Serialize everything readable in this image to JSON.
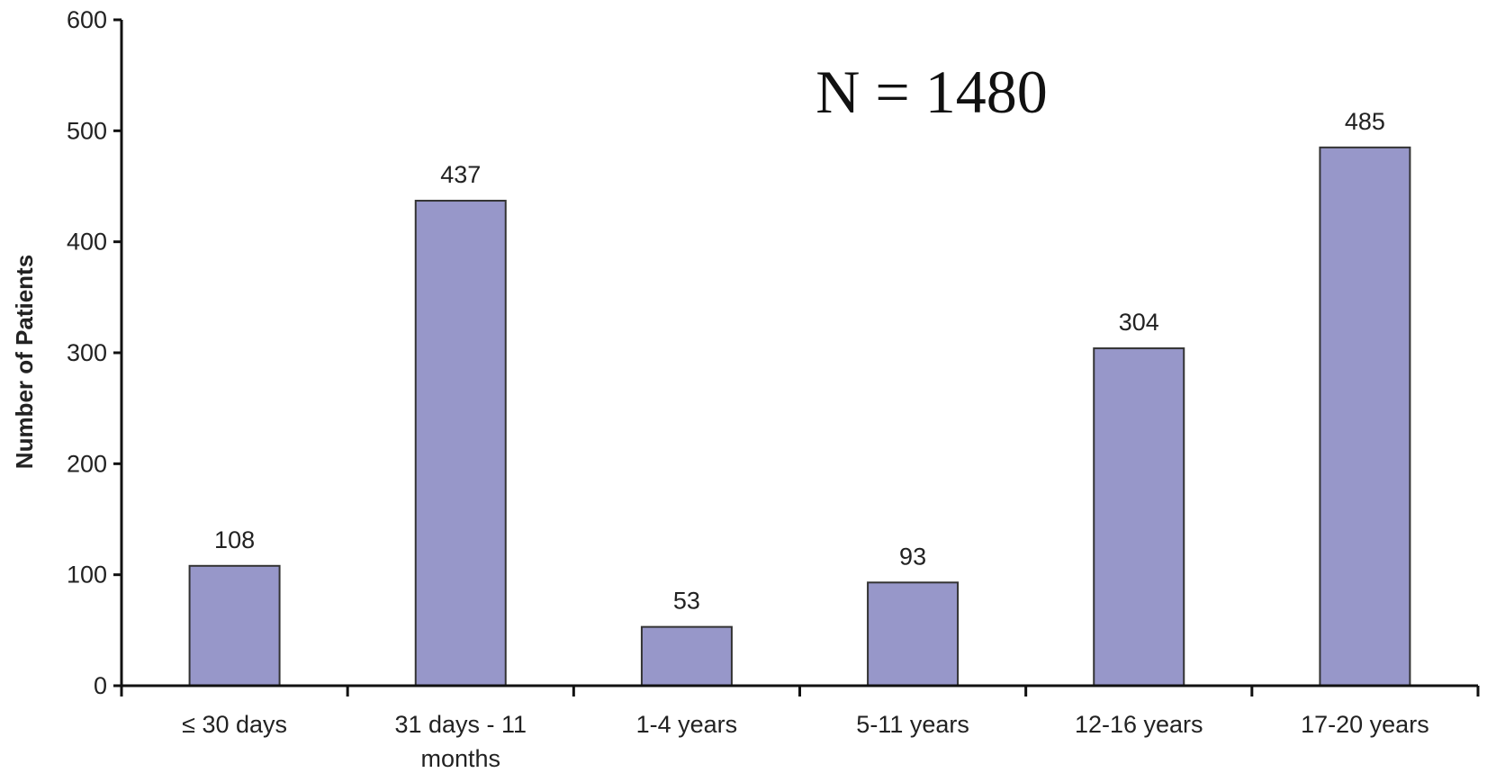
{
  "chart_data": {
    "type": "bar",
    "categories": [
      [
        "≤ 30 days"
      ],
      [
        "31 days - 11",
        "months"
      ],
      [
        "1-4 years"
      ],
      [
        "5-11 years"
      ],
      [
        "12-16 years"
      ],
      [
        "17-20 years"
      ]
    ],
    "values": [
      108,
      437,
      53,
      93,
      304,
      485
    ],
    "data_labels": [
      "108",
      "437",
      "53",
      "93",
      "304",
      "485"
    ],
    "ylabel": "Number of Patients",
    "xlabel": "",
    "ylim": [
      0,
      600
    ],
    "yticks": [
      0,
      100,
      200,
      300,
      400,
      500,
      600
    ],
    "ytick_labels": [
      "0",
      "100",
      "200",
      "300",
      "400",
      "500",
      "600"
    ],
    "annotation": "N = 1480",
    "grid": false,
    "legend": "none",
    "bar_color": "#9797c9",
    "bar_edge_color": "#333333"
  }
}
